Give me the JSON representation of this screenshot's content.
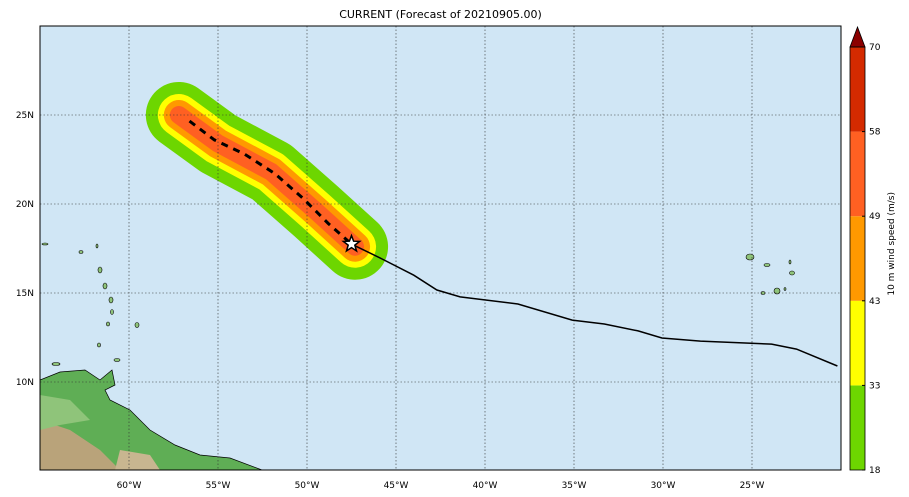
{
  "title": "CURRENT (Forecast of 20210905.00)",
  "map": {
    "lon_range": [
      -65,
      -20
    ],
    "lat_range": [
      5,
      30
    ],
    "lon_ticks": [
      {
        "v": -60,
        "label": "60°W"
      },
      {
        "v": -55,
        "label": "55°W"
      },
      {
        "v": -50,
        "label": "50°W"
      },
      {
        "v": -45,
        "label": "45°W"
      },
      {
        "v": -40,
        "label": "40°W"
      },
      {
        "v": -35,
        "label": "35°W"
      },
      {
        "v": -30,
        "label": "30°W"
      },
      {
        "v": -25,
        "label": "25°W"
      }
    ],
    "lat_ticks": [
      {
        "v": 25,
        "label": "25N"
      },
      {
        "v": 20,
        "label": "20N"
      },
      {
        "v": 15,
        "label": "15N"
      },
      {
        "v": 10,
        "label": "10N"
      }
    ],
    "ocean_color": "#d0e6f5",
    "current_position": {
      "lon": -47.5,
      "lat": 17.75
    },
    "past_track": [
      [
        -47.5,
        17.75
      ],
      [
        -45.9,
        16.97
      ],
      [
        -44.0,
        16.0
      ],
      [
        -42.7,
        15.17
      ],
      [
        -41.4,
        14.78
      ],
      [
        -38.15,
        14.38
      ],
      [
        -35.1,
        13.48
      ],
      [
        -33.3,
        13.26
      ],
      [
        -31.4,
        12.87
      ],
      [
        -30.06,
        12.47
      ],
      [
        -27.9,
        12.3
      ],
      [
        -23.9,
        12.13
      ],
      [
        -22.5,
        11.85
      ],
      [
        -20.2,
        10.9
      ]
    ],
    "forecast_track": [
      [
        -56.6,
        24.66
      ],
      [
        -55.2,
        23.6
      ],
      [
        -53.5,
        22.8
      ],
      [
        -51.8,
        21.7
      ],
      [
        -50.2,
        20.3
      ],
      [
        -48.8,
        18.9
      ],
      [
        -47.5,
        17.75
      ]
    ]
  },
  "colorbar": {
    "label": "10 m wind speed (m/s)",
    "levels": [
      "18",
      "33",
      "43",
      "49",
      "58",
      "70"
    ],
    "colors": [
      "#6dd600",
      "#ffff00",
      "#ff9900",
      "#ff6022",
      "#d42a00"
    ],
    "extend_color": "#8b0000"
  }
}
